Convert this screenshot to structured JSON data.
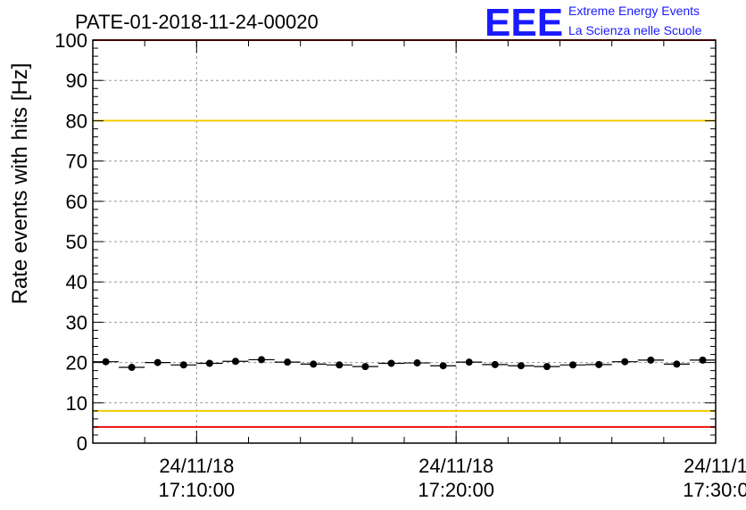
{
  "chart_data": {
    "type": "scatter",
    "title": "PATE-01-2018-11-24-00020",
    "ylabel": "Rate events with hits [Hz]",
    "xlabel": "",
    "ylim": [
      0,
      100
    ],
    "yticks": [
      0,
      10,
      20,
      30,
      40,
      50,
      60,
      70,
      80,
      90,
      100
    ],
    "xlim": [
      "2018-11-24T17:06:00",
      "2018-11-24T17:30:00"
    ],
    "xticks": [
      {
        "time": "2018-11-24T17:10:00",
        "date_label": "24/11/18",
        "time_label": "17:10:00"
      },
      {
        "time": "2018-11-24T17:20:00",
        "date_label": "24/11/18",
        "time_label": "17:20:00"
      },
      {
        "time": "2018-11-24T17:30:00",
        "date_label": "24/11/1",
        "time_label": "17:30:0"
      }
    ],
    "grid": true,
    "reference_lines": [
      {
        "y": 100,
        "color": "#ee1111"
      },
      {
        "y": 80,
        "color": "#f0cc00"
      },
      {
        "y": 8,
        "color": "#f0cc00"
      },
      {
        "y": 4,
        "color": "#ee1111"
      }
    ],
    "series": [
      {
        "marker_color": "#000000",
        "bin_width_seconds": 60,
        "x": [
          "2018-11-24T17:06:30",
          "2018-11-24T17:07:30",
          "2018-11-24T17:08:30",
          "2018-11-24T17:09:30",
          "2018-11-24T17:10:30",
          "2018-11-24T17:11:30",
          "2018-11-24T17:12:30",
          "2018-11-24T17:13:30",
          "2018-11-24T17:14:30",
          "2018-11-24T17:15:30",
          "2018-11-24T17:16:30",
          "2018-11-24T17:17:30",
          "2018-11-24T17:18:30",
          "2018-11-24T17:19:30",
          "2018-11-24T17:20:30",
          "2018-11-24T17:21:30",
          "2018-11-24T17:22:30",
          "2018-11-24T17:23:30",
          "2018-11-24T17:24:30",
          "2018-11-24T17:25:30",
          "2018-11-24T17:26:30",
          "2018-11-24T17:27:30",
          "2018-11-24T17:28:30",
          "2018-11-24T17:29:30"
        ],
        "y": [
          20.2,
          18.8,
          20.0,
          19.4,
          19.8,
          20.3,
          20.7,
          20.1,
          19.6,
          19.4,
          19.0,
          19.8,
          19.9,
          19.2,
          20.1,
          19.5,
          19.2,
          19.0,
          19.4,
          19.5,
          20.2,
          20.6,
          19.6,
          20.6
        ]
      }
    ]
  },
  "logo": {
    "mark": "EEE",
    "line1": "Extreme Energy Events",
    "line2": "La Scienza nelle Scuole",
    "color": "#1a1aff"
  }
}
